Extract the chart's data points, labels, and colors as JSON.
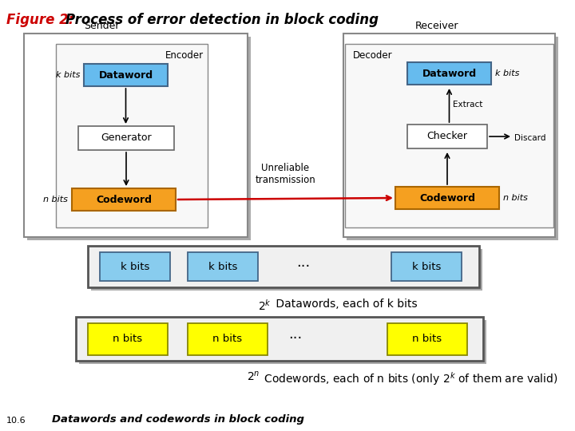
{
  "title_fig": "Figure 2:  ",
  "title_main": "Process of error detection in block coding",
  "title_color_fig": "#cc0000",
  "title_color_main": "#000000",
  "bg_color": "#ffffff",
  "sender_label": "Sender",
  "receiver_label": "Receiver",
  "encoder_label": "Encoder",
  "decoder_label": "Decoder",
  "dataword_color": "#66bbee",
  "codeword_color": "#f5a020",
  "generator_color": "#ffffff",
  "checker_color": "#ffffff",
  "k_bits_color": "#88ccee",
  "n_bits_color": "#ffff00",
  "unreliable_text": "Unreliable\ntransmission",
  "extract_text": "Extract",
  "discard_text": "Discard",
  "footer_text": "Datawords and codewords in block coding",
  "footer_num": "10.6"
}
